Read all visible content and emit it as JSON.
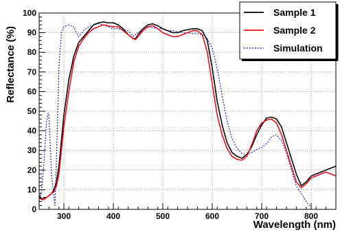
{
  "chart_data": {
    "type": "line",
    "xlabel": "Wavelength (nm)",
    "ylabel": "Reflectance (%)",
    "xlim": [
      250,
      850
    ],
    "ylim": [
      0,
      100
    ],
    "x_ticks": [
      300,
      400,
      500,
      600,
      700,
      800
    ],
    "y_ticks": [
      0,
      10,
      20,
      30,
      40,
      50,
      60,
      70,
      80,
      90,
      100
    ],
    "grid": true,
    "legend_position": "top-right",
    "series": [
      {
        "name": "Sample 1",
        "color": "#000000",
        "style": "solid",
        "x": [
          250,
          255,
          260,
          265,
          270,
          275,
          280,
          285,
          290,
          295,
          300,
          310,
          320,
          330,
          340,
          350,
          360,
          370,
          380,
          390,
          400,
          410,
          420,
          430,
          440,
          445,
          450,
          460,
          470,
          480,
          490,
          500,
          510,
          520,
          530,
          540,
          550,
          560,
          570,
          580,
          590,
          600,
          610,
          620,
          630,
          640,
          650,
          660,
          670,
          680,
          690,
          700,
          710,
          720,
          730,
          740,
          750,
          760,
          770,
          780,
          790,
          800,
          810,
          820,
          830,
          840,
          850
        ],
        "values": [
          7,
          5,
          6,
          6,
          7,
          8,
          10,
          14,
          22,
          35,
          48,
          66,
          78,
          85,
          88,
          91,
          94,
          95,
          95.5,
          95,
          95,
          94,
          92,
          89,
          87,
          87,
          89,
          92,
          94,
          94.5,
          93.5,
          92,
          91,
          90,
          90,
          91,
          91.5,
          92,
          92,
          91,
          86,
          72,
          55,
          43,
          34,
          29,
          27,
          26,
          28,
          32,
          38,
          43,
          46.5,
          47,
          46,
          42,
          34,
          26,
          18,
          12,
          14,
          17,
          18,
          19,
          20,
          21,
          22
        ]
      },
      {
        "name": "Sample 2",
        "color": "#e8101a",
        "style": "solid",
        "x": [
          250,
          255,
          260,
          265,
          270,
          275,
          280,
          285,
          290,
          295,
          300,
          310,
          320,
          330,
          340,
          350,
          360,
          370,
          380,
          390,
          400,
          410,
          420,
          430,
          440,
          445,
          450,
          460,
          470,
          480,
          490,
          500,
          510,
          520,
          530,
          540,
          550,
          560,
          570,
          580,
          590,
          600,
          610,
          620,
          630,
          640,
          650,
          660,
          670,
          680,
          690,
          700,
          710,
          720,
          730,
          740,
          750,
          760,
          770,
          780,
          790,
          800,
          810,
          820,
          830,
          840,
          850
        ],
        "values": [
          6,
          5,
          5,
          6,
          7,
          8,
          9,
          12,
          18,
          30,
          42,
          60,
          75,
          83,
          87,
          90,
          92,
          93,
          94,
          93.5,
          93,
          93,
          91,
          89,
          87,
          86.5,
          88,
          91,
          93,
          93.5,
          92,
          90,
          89,
          88,
          88,
          89,
          90,
          91,
          91,
          89,
          80,
          64,
          48,
          38,
          31,
          27,
          25.5,
          25,
          27,
          33,
          40,
          44,
          45.5,
          46,
          44,
          38,
          30,
          22,
          14,
          11,
          13,
          16,
          17,
          18,
          19,
          18,
          17
        ]
      },
      {
        "name": "Simulation",
        "color": "#2233dd",
        "style": "dotted",
        "x": [
          250,
          255,
          260,
          265,
          268,
          270,
          272,
          275,
          280,
          282,
          285,
          290,
          295,
          300,
          310,
          320,
          325,
          330,
          340,
          350,
          360,
          370,
          380,
          390,
          400,
          410,
          420,
          430,
          440,
          450,
          460,
          470,
          480,
          490,
          500,
          510,
          520,
          530,
          540,
          550,
          560,
          570,
          580,
          590,
          600,
          610,
          620,
          630,
          640,
          650,
          660,
          670,
          680,
          690,
          700,
          710,
          720,
          730,
          740,
          750,
          760,
          770,
          780,
          790,
          800
        ],
        "values": [
          4,
          10,
          25,
          45,
          49,
          48,
          35,
          18,
          6,
          2,
          25,
          72,
          90,
          93,
          94,
          93,
          90,
          88,
          91,
          93,
          94,
          94.5,
          94,
          93,
          92,
          92,
          91.5,
          91,
          88,
          90,
          92,
          93,
          92.5,
          92,
          92,
          91,
          91,
          90.5,
          90,
          90,
          89.5,
          89.5,
          89,
          87,
          82,
          72,
          58,
          45,
          36,
          31,
          28.5,
          28,
          29,
          30.5,
          31.5,
          33.5,
          37,
          38,
          35,
          29,
          20,
          12,
          8,
          4,
          1
        ]
      }
    ]
  }
}
